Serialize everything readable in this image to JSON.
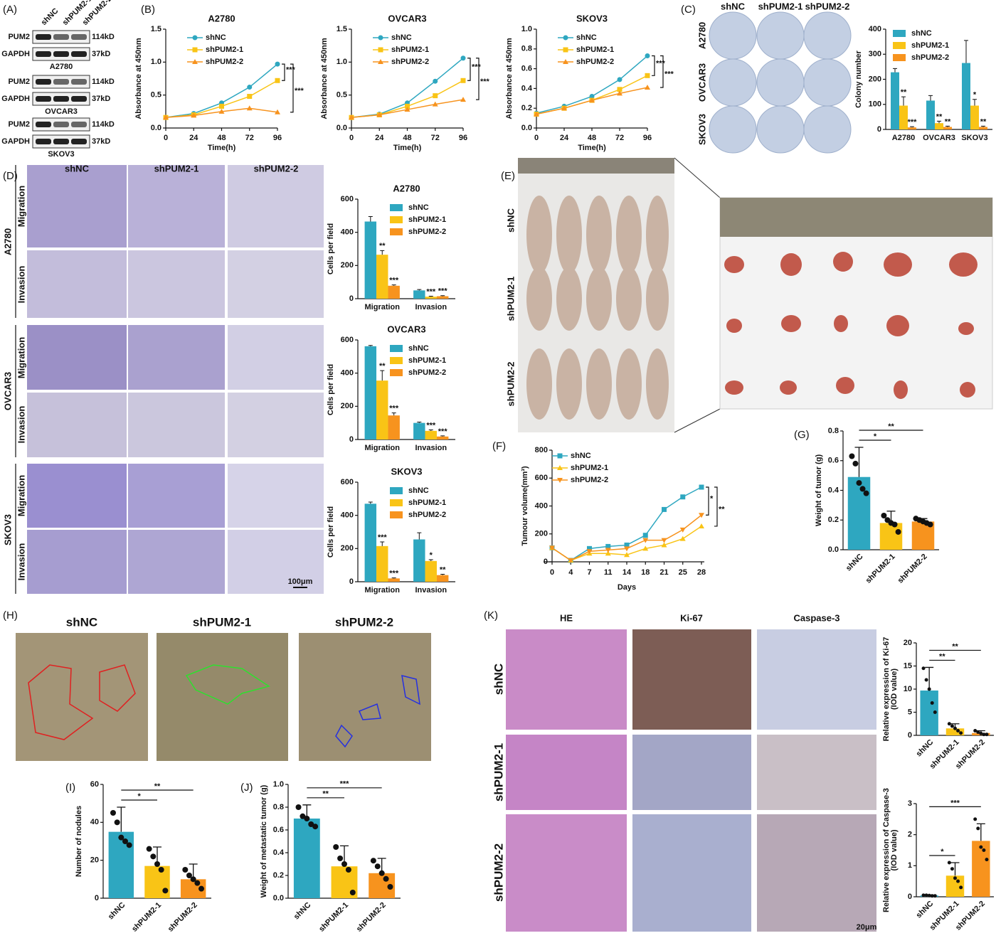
{
  "panel_labels": [
    "(A)",
    "(B)",
    "(C)",
    "(D)",
    "(E)",
    "(F)",
    "(G)",
    "(H)",
    "(I)",
    "(J)",
    "(K)"
  ],
  "blot": {
    "lanes": [
      "shNC",
      "shPUM2-1",
      "shPUM2-2"
    ],
    "groups": [
      {
        "cell_line": "A2780",
        "bands": [
          {
            "protein": "PUM2",
            "size": "114kD"
          },
          {
            "protein": "GAPDH",
            "size": "37kD"
          }
        ]
      },
      {
        "cell_line": "OVCAR3",
        "bands": [
          {
            "protein": "PUM2",
            "size": "114kD"
          },
          {
            "protein": "GAPDH",
            "size": "37kD"
          }
        ]
      },
      {
        "cell_line": "SKOV3",
        "bands": [
          {
            "protein": "PUM2",
            "size": "114kD"
          },
          {
            "protein": "GAPDH",
            "size": "37kD"
          }
        ]
      }
    ]
  },
  "colony_plates": {
    "columns": [
      "shNC",
      "shPUM2-1",
      "shPUM2-2"
    ],
    "rows": [
      "A2780",
      "OVCAR3",
      "SKOV3"
    ]
  },
  "transwell": {
    "columns": [
      "shNC",
      "shPUM2-1",
      "shPUM2-2"
    ],
    "rows": [
      "A2780",
      "OVCAR3",
      "SKOV3"
    ],
    "assays": [
      "Migration",
      "Invasion"
    ],
    "scale_bar": "100μm"
  },
  "xenograft": {
    "rows": [
      "shNC",
      "shPUM2-1",
      "shPUM2-2"
    ]
  },
  "metastasis": {
    "columns": [
      "shNC",
      "shPUM2-1",
      "shPUM2-2"
    ]
  },
  "ihc": {
    "columns": [
      "HE",
      "Ki-67",
      "Caspase-3"
    ],
    "rows": [
      "shNC",
      "shPUM2-1",
      "shPUM2-2"
    ],
    "scale_bar": "20μm"
  },
  "chart_data": [
    {
      "type": "line",
      "title": "A2780",
      "x_label": "Time(h)",
      "y_label": "Absorbance at 450nm",
      "x": [
        0,
        24,
        48,
        72,
        96
      ],
      "xlim": [
        0,
        96
      ],
      "xticks": [
        0,
        24,
        48,
        72,
        96
      ],
      "ylim": [
        0,
        1.5
      ],
      "yticks": [
        {
          "value": 0,
          "label": "0.0"
        },
        0.5,
        {
          "value": 1,
          "label": "1.0"
        },
        1.5
      ],
      "legend": "upper left",
      "series": [
        {
          "name": "shNC",
          "color": "#2ea7c0",
          "marker": "circle",
          "values": [
            0.16,
            0.22,
            0.38,
            0.62,
            0.97
          ]
        },
        {
          "name": "shPUM2-1",
          "color": "#f9c416",
          "marker": "square",
          "values": [
            0.16,
            0.2,
            0.33,
            0.48,
            0.72
          ]
        },
        {
          "name": "shPUM2-2",
          "color": "#f7931e",
          "marker": "triangle",
          "values": [
            0.16,
            0.19,
            0.25,
            0.3,
            0.24
          ]
        }
      ],
      "annotations": [
        {
          "label": "***",
          "versus": "shPUM2-1"
        },
        {
          "label": "***",
          "versus": "shPUM2-2"
        }
      ]
    },
    {
      "type": "line",
      "title": "OVCAR3",
      "x_label": "Time(h)",
      "y_label": "Absorbance at 450nm",
      "x": [
        0,
        24,
        48,
        72,
        96
      ],
      "xlim": [
        0,
        96
      ],
      "xticks": [
        0,
        24,
        48,
        72,
        96
      ],
      "ylim": [
        0,
        1.5
      ],
      "yticks": [
        {
          "value": 0,
          "label": "0.0"
        },
        0.5,
        {
          "value": 1,
          "label": "1.0"
        },
        1.5
      ],
      "legend": "upper left",
      "series": [
        {
          "name": "shNC",
          "color": "#2ea7c0",
          "marker": "circle",
          "values": [
            0.16,
            0.21,
            0.38,
            0.71,
            1.06
          ]
        },
        {
          "name": "shPUM2-1",
          "color": "#f9c416",
          "marker": "square",
          "values": [
            0.16,
            0.2,
            0.33,
            0.49,
            0.72
          ]
        },
        {
          "name": "shPUM2-2",
          "color": "#f7931e",
          "marker": "triangle",
          "values": [
            0.16,
            0.2,
            0.28,
            0.36,
            0.43
          ]
        }
      ],
      "annotations": [
        {
          "label": "***",
          "versus": "shPUM2-1"
        },
        {
          "label": "***",
          "versus": "shPUM2-2"
        }
      ]
    },
    {
      "type": "line",
      "title": "SKOV3",
      "x_label": "Time(h)",
      "y_label": "Absorbance at 450nm",
      "x": [
        0,
        24,
        48,
        72,
        96
      ],
      "xlim": [
        0,
        96
      ],
      "xticks": [
        0,
        24,
        48,
        72,
        96
      ],
      "ylim": [
        0,
        1
      ],
      "yticks": [
        {
          "value": 0,
          "label": "0.0"
        },
        0.2,
        0.4,
        0.6,
        0.8,
        {
          "value": 1,
          "label": "1.0"
        }
      ],
      "legend": "upper left",
      "series": [
        {
          "name": "shNC",
          "color": "#2ea7c0",
          "marker": "circle",
          "values": [
            0.15,
            0.22,
            0.32,
            0.49,
            0.73
          ]
        },
        {
          "name": "shPUM2-1",
          "color": "#f9c416",
          "marker": "square",
          "values": [
            0.14,
            0.2,
            0.28,
            0.39,
            0.53
          ]
        },
        {
          "name": "shPUM2-2",
          "color": "#f7931e",
          "marker": "triangle",
          "values": [
            0.14,
            0.2,
            0.28,
            0.35,
            0.41
          ]
        }
      ],
      "annotations": [
        {
          "label": "***",
          "versus": "shPUM2-1"
        },
        {
          "label": "***",
          "versus": "shPUM2-2"
        }
      ]
    },
    {
      "type": "bar",
      "y_label": "Colony number",
      "categories": [
        "A2780",
        "OVCAR3",
        "SKOV3"
      ],
      "ylim": [
        0,
        400
      ],
      "yticks": [
        0,
        100,
        200,
        300,
        400
      ],
      "legend": "upper left",
      "series": [
        {
          "name": "shNC",
          "color": "#2ea7c0",
          "values": [
            228,
            115,
            265
          ],
          "errors": [
            15,
            20,
            90
          ]
        },
        {
          "name": "shPUM2-1",
          "color": "#f9c416",
          "values": [
            95,
            25,
            95
          ],
          "errors": [
            35,
            8,
            25
          ],
          "stars": [
            "**",
            "**",
            "*"
          ]
        },
        {
          "name": "shPUM2-2",
          "color": "#f7931e",
          "values": [
            8,
            10,
            10
          ],
          "errors": [
            3,
            3,
            3
          ],
          "stars": [
            "***",
            "**",
            "**"
          ]
        }
      ]
    },
    {
      "type": "bar",
      "title": "A2780",
      "y_label": "Cells per field",
      "categories": [
        "Migration",
        "Invasion"
      ],
      "ylim": [
        0,
        600
      ],
      "yticks": [
        0,
        200,
        400,
        600
      ],
      "legend": "upper left",
      "series": [
        {
          "name": "shNC",
          "color": "#2ea7c0",
          "values": [
            465,
            50
          ],
          "errors": [
            30,
            5
          ]
        },
        {
          "name": "shPUM2-1",
          "color": "#f9c416",
          "values": [
            265,
            12
          ],
          "errors": [
            25,
            3
          ],
          "stars": [
            "**",
            "***"
          ]
        },
        {
          "name": "shPUM2-2",
          "color": "#f7931e",
          "values": [
            78,
            15
          ],
          "errors": [
            5,
            3
          ],
          "stars": [
            "***",
            "***"
          ]
        }
      ]
    },
    {
      "type": "bar",
      "title": "OVCAR3",
      "y_label": "Cells per field",
      "categories": [
        "Migration",
        "Invasion"
      ],
      "ylim": [
        0,
        600
      ],
      "yticks": [
        0,
        200,
        400,
        600
      ],
      "legend": "upper left",
      "series": [
        {
          "name": "shNC",
          "color": "#2ea7c0",
          "values": [
            562,
            100
          ],
          "errors": [
            5,
            5
          ]
        },
        {
          "name": "shPUM2-1",
          "color": "#f9c416",
          "values": [
            355,
            52
          ],
          "errors": [
            60,
            6
          ],
          "stars": [
            "**",
            "***"
          ]
        },
        {
          "name": "shPUM2-2",
          "color": "#f7931e",
          "values": [
            145,
            18
          ],
          "errors": [
            15,
            4
          ],
          "stars": [
            "***",
            "***"
          ]
        }
      ]
    },
    {
      "type": "bar",
      "title": "SKOV3",
      "y_label": "Cells per field",
      "categories": [
        "Migration",
        "Invasion"
      ],
      "ylim": [
        0,
        600
      ],
      "yticks": [
        0,
        200,
        400,
        600
      ],
      "legend": "upper left",
      "series": [
        {
          "name": "shNC",
          "color": "#2ea7c0",
          "values": [
            470,
            255
          ],
          "errors": [
            10,
            40
          ]
        },
        {
          "name": "shPUM2-1",
          "color": "#f9c416",
          "values": [
            215,
            125
          ],
          "errors": [
            25,
            8
          ],
          "stars": [
            "***",
            "*"
          ]
        },
        {
          "name": "shPUM2-2",
          "color": "#f7931e",
          "values": [
            20,
            40
          ],
          "errors": [
            3,
            5
          ],
          "stars": [
            "***",
            "**"
          ]
        }
      ]
    },
    {
      "type": "line",
      "x_label": "Days",
      "y_label": "Tumour volume(mm³)",
      "categories": [
        "0",
        "4",
        "7",
        "11",
        "14",
        "18",
        "21",
        "25",
        "28"
      ],
      "ylim": [
        0,
        800
      ],
      "yticks": [
        0,
        200,
        400,
        600,
        800
      ],
      "legend": "upper left",
      "series": [
        {
          "name": "shNC",
          "color": "#2ea7c0",
          "marker": "square",
          "values": [
            100,
            10,
            95,
            110,
            120,
            190,
            375,
            465,
            535
          ]
        },
        {
          "name": "shPUM2-1",
          "color": "#f9c416",
          "marker": "triangle",
          "values": [
            100,
            10,
            60,
            60,
            50,
            95,
            120,
            165,
            255
          ]
        },
        {
          "name": "shPUM2-2",
          "color": "#f7931e",
          "marker": "triangle-down",
          "values": [
            100,
            10,
            75,
            85,
            95,
            155,
            155,
            230,
            335
          ]
        }
      ],
      "annotations": [
        {
          "label": "*",
          "versus": "shPUM2-2"
        },
        {
          "label": "**",
          "versus": "shPUM2-1"
        }
      ]
    },
    {
      "type": "dotbar",
      "y_label": "Weight of tumor (g)",
      "categories": [
        "shNC",
        "shPUM2-1",
        "shPUM2-2"
      ],
      "colors": [
        "#2ea7c0",
        "#f9c416",
        "#f7931e"
      ],
      "ylim": [
        0,
        0.8
      ],
      "yticks": [
        {
          "value": 0,
          "label": "0.0"
        },
        0.2,
        0.4,
        0.6,
        0.8
      ],
      "values": [
        0.49,
        0.18,
        0.19
      ],
      "errors": [
        0.2,
        0.08,
        0.02
      ],
      "points": [
        [
          0.63,
          0.58,
          0.45,
          0.41,
          0.38
        ],
        [
          0.23,
          0.2,
          0.18,
          0.17,
          0.12
        ],
        [
          0.21,
          0.2,
          0.19,
          0.18,
          0.17
        ]
      ],
      "annotations": [
        {
          "label": "*",
          "versus": "shPUM2-1"
        },
        {
          "label": "**",
          "versus": "shPUM2-2"
        }
      ]
    },
    {
      "type": "dotbar",
      "y_label": "Number of nodules",
      "categories": [
        "shNC",
        "shPUM2-1",
        "shPUM2-2"
      ],
      "colors": [
        "#2ea7c0",
        "#f9c416",
        "#f7931e"
      ],
      "ylim": [
        0,
        60
      ],
      "yticks": [
        0,
        20,
        40,
        60
      ],
      "values": [
        35,
        17,
        10
      ],
      "errors": [
        13,
        10,
        8
      ],
      "points": [
        [
          45,
          40,
          32,
          30,
          28
        ],
        [
          26,
          22,
          18,
          15,
          4
        ],
        [
          15,
          12,
          10,
          8,
          5
        ]
      ],
      "annotations": [
        {
          "label": "*",
          "versus": "shPUM2-1"
        },
        {
          "label": "**",
          "versus": "shPUM2-2"
        }
      ]
    },
    {
      "type": "dotbar",
      "y_label": "Weight of metastatic tumor (g)",
      "categories": [
        "shNC",
        "shPUM2-1",
        "shPUM2-2"
      ],
      "colors": [
        "#2ea7c0",
        "#f9c416",
        "#f7931e"
      ],
      "ylim": [
        0,
        1
      ],
      "yticks": [
        {
          "value": 0,
          "label": "0.0"
        },
        0.2,
        0.4,
        0.6,
        0.8,
        {
          "value": 1,
          "label": "1.0"
        }
      ],
      "values": [
        0.7,
        0.28,
        0.22
      ],
      "errors": [
        0.12,
        0.18,
        0.13
      ],
      "points": [
        [
          0.8,
          0.72,
          0.7,
          0.65,
          0.63
        ],
        [
          0.45,
          0.35,
          0.3,
          0.25,
          0.05
        ],
        [
          0.33,
          0.28,
          0.22,
          0.17,
          0.1
        ]
      ],
      "annotations": [
        {
          "label": "**",
          "versus": "shPUM2-1"
        },
        {
          "label": "***",
          "versus": "shPUM2-2"
        }
      ]
    },
    {
      "type": "dotbar",
      "y_label": [
        "Relative expression of Ki-67",
        "(IOD value)"
      ],
      "categories": [
        "shNC",
        "shPUM2-1",
        "shPUM2-2"
      ],
      "colors": [
        "#2ea7c0",
        "#f9c416",
        "#f7931e"
      ],
      "ylim": [
        0,
        20
      ],
      "yticks": [
        0,
        5,
        10,
        15,
        20
      ],
      "values": [
        9.7,
        1.5,
        0.5
      ],
      "errors": [
        5,
        1,
        0.5
      ],
      "points": [
        [
          14.5,
          12,
          10,
          7,
          5
        ],
        [
          2.5,
          2,
          1.5,
          1,
          0.5
        ],
        [
          1,
          0.7,
          0.4,
          0.2,
          0.2
        ]
      ],
      "annotations": [
        {
          "label": "**",
          "versus": "shPUM2-1"
        },
        {
          "label": "**",
          "versus": "shPUM2-2"
        }
      ]
    },
    {
      "type": "dotbar",
      "y_label": [
        "Relative expression of Caspase-3",
        "(IOD value)"
      ],
      "categories": [
        "shNC",
        "shPUM2-1",
        "shPUM2-2"
      ],
      "colors": [
        "#2ea7c0",
        "#f9c416",
        "#f7931e"
      ],
      "ylim": [
        0,
        3
      ],
      "yticks": [
        0,
        1,
        2,
        3
      ],
      "values": [
        0.04,
        0.68,
        1.8
      ],
      "errors": [
        0.02,
        0.42,
        0.55
      ],
      "points": [
        [
          0.05,
          0.05,
          0.04,
          0.03,
          0.03
        ],
        [
          1.1,
          0.9,
          0.6,
          0.5,
          0.3
        ],
        [
          2.5,
          2.2,
          1.6,
          1.5,
          1.2
        ]
      ],
      "annotations": [
        {
          "label": "*",
          "versus": "shPUM2-1"
        },
        {
          "label": "***",
          "versus": "shPUM2-2"
        }
      ]
    }
  ]
}
